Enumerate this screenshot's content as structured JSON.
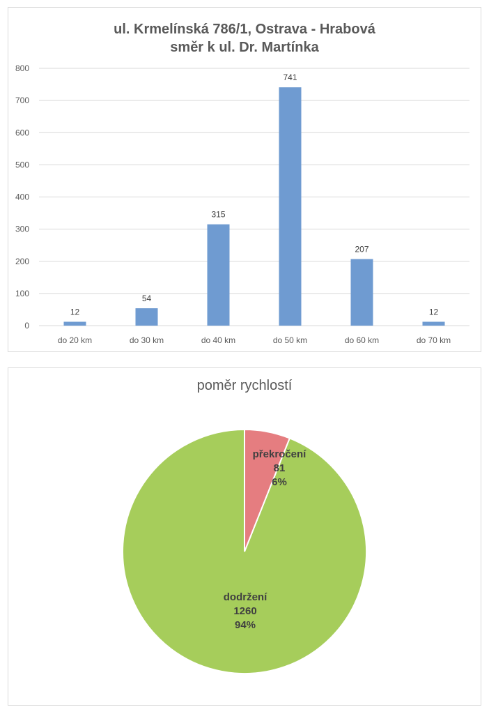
{
  "colors": {
    "bar": "#6f9bd1",
    "pie_compliant": "#a6cd5b",
    "pie_exceeded": "#e57d80",
    "grid": "#d9d9d9",
    "text": "#595959"
  },
  "chart_data": [
    {
      "type": "bar",
      "title": "ul. Krmelínská 786/1, Ostrava - Hrabová",
      "subtitle": "směr k ul. Dr. Martínka",
      "categories": [
        "do 20 km",
        "do 30 km",
        "do 40 km",
        "do 50 km",
        "do 60 km",
        "do 70 km"
      ],
      "values": [
        12,
        54,
        315,
        741,
        207,
        12
      ],
      "ylim": [
        0,
        800
      ],
      "yticks": [
        "0",
        "100",
        "200",
        "300",
        "400",
        "500",
        "600",
        "700",
        "800"
      ],
      "grid": true,
      "data_labels": true
    },
    {
      "type": "pie",
      "title": "poměr rychlostí",
      "slices": [
        {
          "label": "dodržení",
          "value": 1260,
          "percent": "94%"
        },
        {
          "label": "překročení",
          "value": 81,
          "percent": "6%"
        }
      ]
    }
  ]
}
